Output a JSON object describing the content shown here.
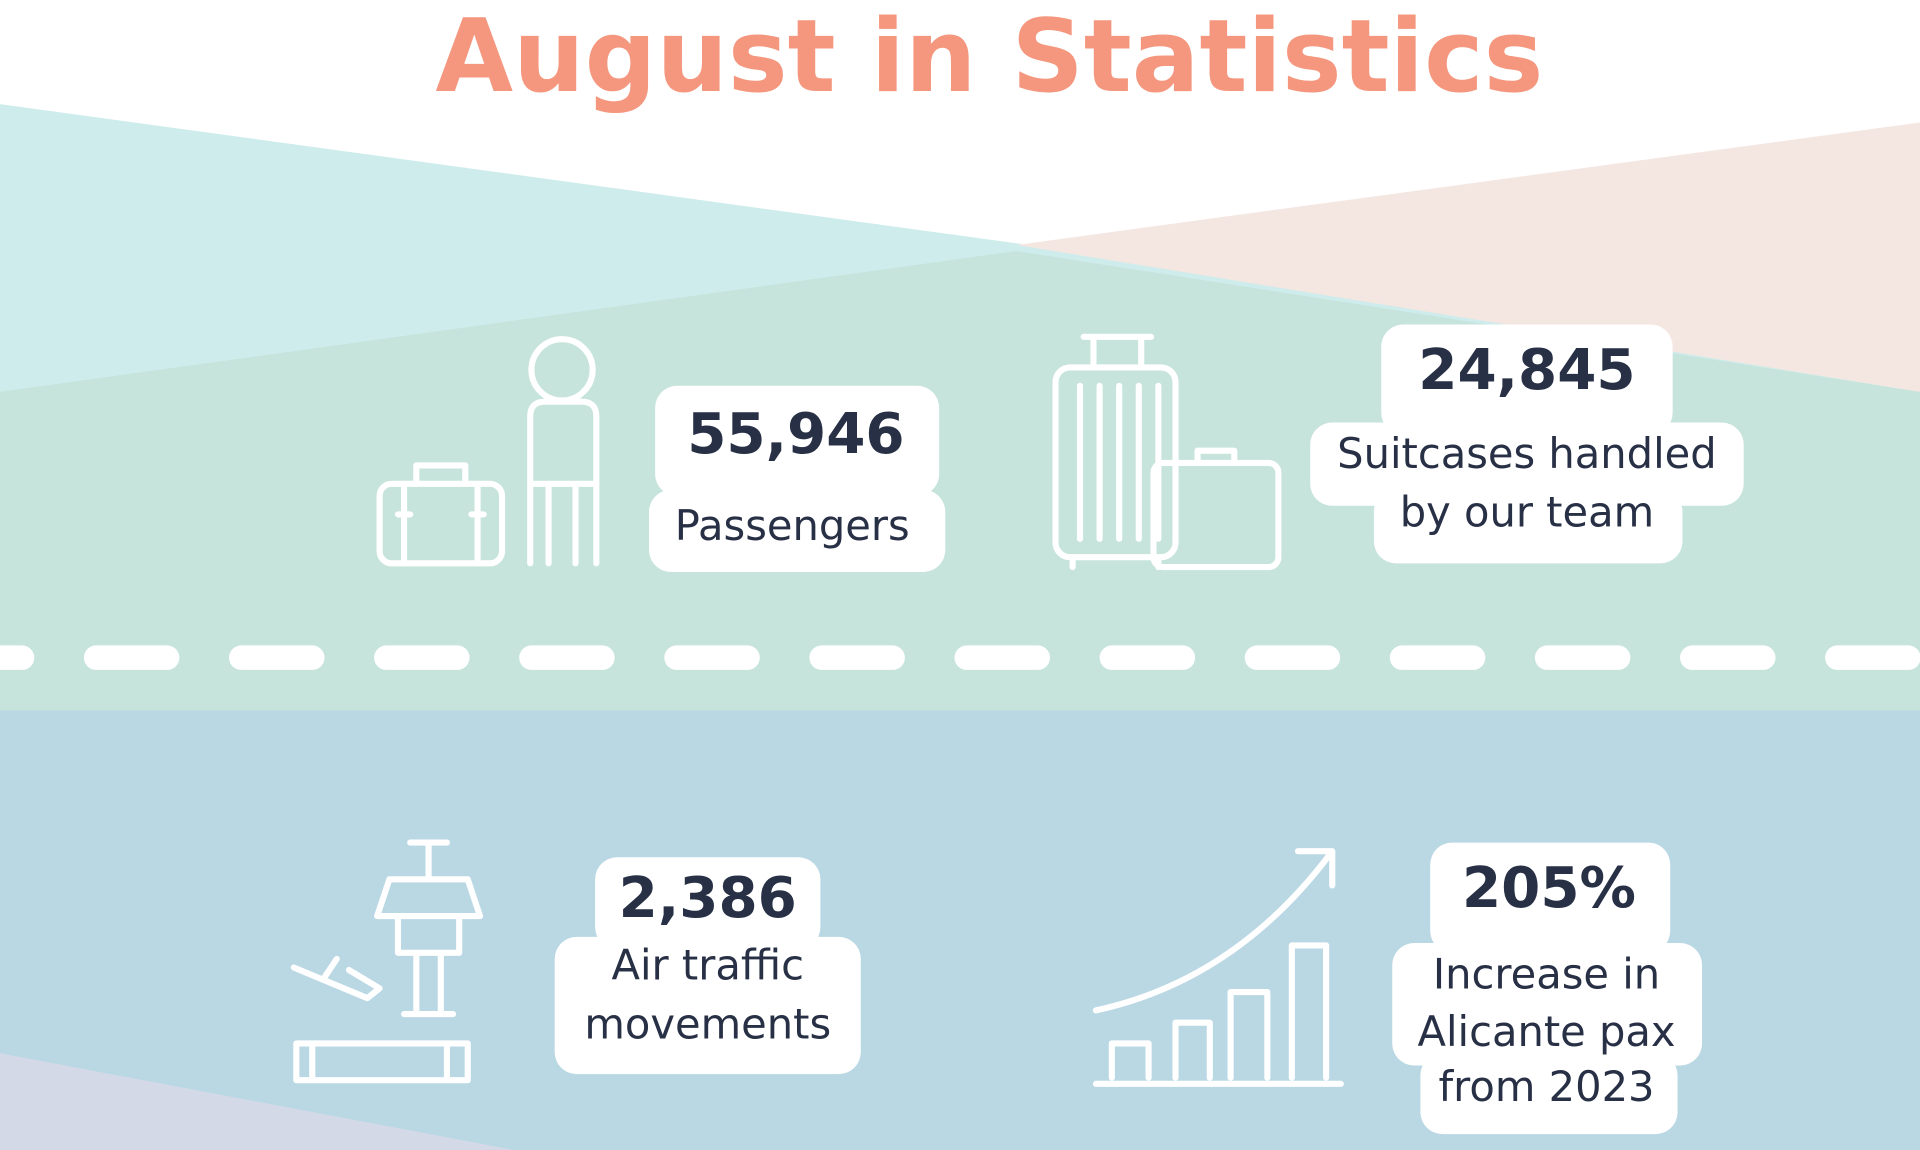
{
  "title": "August in Statistics",
  "stats": [
    {
      "value": "55,946",
      "lines": [
        "Passengers"
      ]
    },
    {
      "value": "24,845",
      "lines": [
        "Suitcases handled",
        "by our team"
      ]
    },
    {
      "value": "2,386",
      "lines": [
        "Air traffic",
        "movements"
      ]
    },
    {
      "value": "205%",
      "lines": [
        "Increase in",
        "Alicante pax",
        "from 2023"
      ]
    }
  ]
}
